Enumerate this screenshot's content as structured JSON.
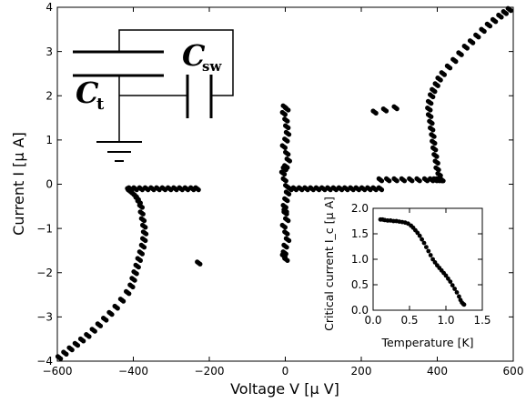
{
  "chart_data": [
    {
      "type": "scatter",
      "title": "",
      "xlabel": "Voltage V [μ V]",
      "ylabel": "Current I [μ A]",
      "xlim": [
        -600,
        600
      ],
      "ylim": [
        -4,
        4
      ],
      "xticks": [
        -600,
        -400,
        -200,
        0,
        200,
        400,
        600
      ],
      "yticks": [
        -4,
        -3,
        -2,
        -1,
        0,
        1,
        2,
        3,
        4
      ],
      "color": "#000000",
      "series": [
        {
          "x": [
            -595,
            -580,
            -565,
            -550,
            -535,
            -520,
            -505,
            -490,
            -475,
            -460,
            -445,
            -430,
            -415,
            -405,
            -400,
            -395,
            -390,
            -385,
            -380,
            -375,
            -372,
            -370,
            -372,
            -375,
            -378,
            -380,
            -385,
            -390,
            -395,
            -400,
            -405,
            -410,
            -412
          ],
          "y": [
            -3.92,
            -3.82,
            -3.72,
            -3.62,
            -3.52,
            -3.42,
            -3.3,
            -3.18,
            -3.05,
            -2.92,
            -2.78,
            -2.62,
            -2.45,
            -2.3,
            -2.15,
            -2.0,
            -1.85,
            -1.7,
            -1.55,
            -1.4,
            -1.25,
            -1.1,
            -0.95,
            -0.8,
            -0.65,
            -0.5,
            -0.4,
            -0.32,
            -0.26,
            -0.22,
            -0.18,
            -0.15,
            -0.12
          ]
        },
        {
          "x": [
            -408,
            -395,
            -380,
            -365,
            -350,
            -335,
            -320,
            -305,
            -290,
            -275,
            -260,
            -245,
            -232
          ],
          "y": [
            -0.1,
            -0.1,
            -0.1,
            -0.1,
            -0.1,
            -0.1,
            -0.1,
            -0.1,
            -0.1,
            -0.1,
            -0.1,
            -0.1,
            -0.1
          ]
        },
        {
          "x": [
            -228
          ],
          "y": [
            -1.78
          ]
        },
        {
          "x": [
            -2,
            -4,
            2,
            4,
            6,
            2,
            -4,
            4,
            8,
            2,
            -6,
            -2,
            4,
            6,
            2,
            -2,
            0,
            4,
            -4,
            2,
            6,
            0,
            -2,
            2,
            -4,
            4,
            -2,
            0
          ],
          "y": [
            1.75,
            1.6,
            1.45,
            1.3,
            1.15,
            1.0,
            0.85,
            0.7,
            0.55,
            0.4,
            0.25,
            0.1,
            -0.05,
            -0.2,
            -0.35,
            -0.5,
            -0.65,
            -0.8,
            -0.95,
            -1.1,
            -1.25,
            -1.4,
            -1.55,
            -1.7,
            -1.62,
            1.7,
            0.35,
            -0.6
          ]
        },
        {
          "x": [
            12,
            25,
            40,
            55,
            70,
            85,
            100,
            115,
            130,
            145,
            160,
            175,
            190,
            205,
            220,
            235,
            250
          ],
          "y": [
            -0.1,
            -0.1,
            -0.1,
            -0.1,
            -0.1,
            -0.1,
            -0.1,
            -0.1,
            -0.1,
            -0.1,
            -0.1,
            -0.1,
            -0.1,
            -0.1,
            -0.1,
            -0.1,
            -0.1
          ]
        },
        {
          "x": [
            250,
            270,
            290,
            310,
            330,
            350,
            370,
            385,
            395,
            402,
            408,
            412
          ],
          "y": [
            0.1,
            0.1,
            0.1,
            0.1,
            0.1,
            0.1,
            0.1,
            0.1,
            0.1,
            0.1,
            0.1,
            0.1
          ]
        },
        {
          "x": [
            410,
            405,
            400,
            398,
            395,
            392,
            390,
            388,
            385,
            383,
            380,
            378,
            380,
            385,
            390,
            398,
            405,
            415,
            430,
            445,
            460,
            475,
            490,
            505,
            520,
            535,
            550,
            565,
            578,
            590
          ],
          "y": [
            0.1,
            0.22,
            0.35,
            0.5,
            0.65,
            0.8,
            0.95,
            1.1,
            1.25,
            1.4,
            1.55,
            1.7,
            1.85,
            2.0,
            2.12,
            2.25,
            2.38,
            2.5,
            2.65,
            2.8,
            2.95,
            3.1,
            3.22,
            3.35,
            3.48,
            3.6,
            3.7,
            3.8,
            3.88,
            3.95
          ]
        },
        {
          "x": [
            235,
            262,
            290
          ],
          "y": [
            1.63,
            1.68,
            1.73
          ]
        }
      ],
      "annotations": {
        "c_t_label": "C",
        "c_t_sub": "t",
        "c_sw_label": "C",
        "c_sw_sub": "sw"
      }
    },
    {
      "type": "scatter",
      "title": "",
      "xlabel": "Temperature [K]",
      "ylabel": "Critical current I_c [μ A]",
      "xlim": [
        0,
        1.5
      ],
      "ylim": [
        0,
        2.0
      ],
      "xticks": [
        0.0,
        0.5,
        1.0,
        1.5
      ],
      "yticks": [
        0.0,
        0.5,
        1.0,
        1.5,
        2.0
      ],
      "color": "#000000",
      "series": [
        {
          "x": [
            0.1,
            0.13,
            0.16,
            0.2,
            0.24,
            0.28,
            0.32,
            0.36,
            0.4,
            0.44,
            0.48,
            0.52,
            0.55,
            0.58,
            0.61,
            0.64,
            0.67,
            0.7,
            0.73,
            0.76,
            0.79,
            0.82,
            0.85,
            0.88,
            0.91,
            0.94,
            0.97,
            1.0,
            1.03,
            1.06,
            1.09,
            1.12,
            1.15,
            1.18,
            1.2,
            1.22,
            1.24,
            1.25
          ],
          "y": [
            1.78,
            1.78,
            1.77,
            1.76,
            1.76,
            1.75,
            1.75,
            1.74,
            1.73,
            1.72,
            1.7,
            1.66,
            1.62,
            1.57,
            1.52,
            1.46,
            1.39,
            1.32,
            1.24,
            1.16,
            1.08,
            1.0,
            0.94,
            0.88,
            0.83,
            0.78,
            0.73,
            0.68,
            0.62,
            0.56,
            0.49,
            0.42,
            0.35,
            0.27,
            0.2,
            0.15,
            0.12,
            0.11
          ]
        }
      ]
    }
  ]
}
